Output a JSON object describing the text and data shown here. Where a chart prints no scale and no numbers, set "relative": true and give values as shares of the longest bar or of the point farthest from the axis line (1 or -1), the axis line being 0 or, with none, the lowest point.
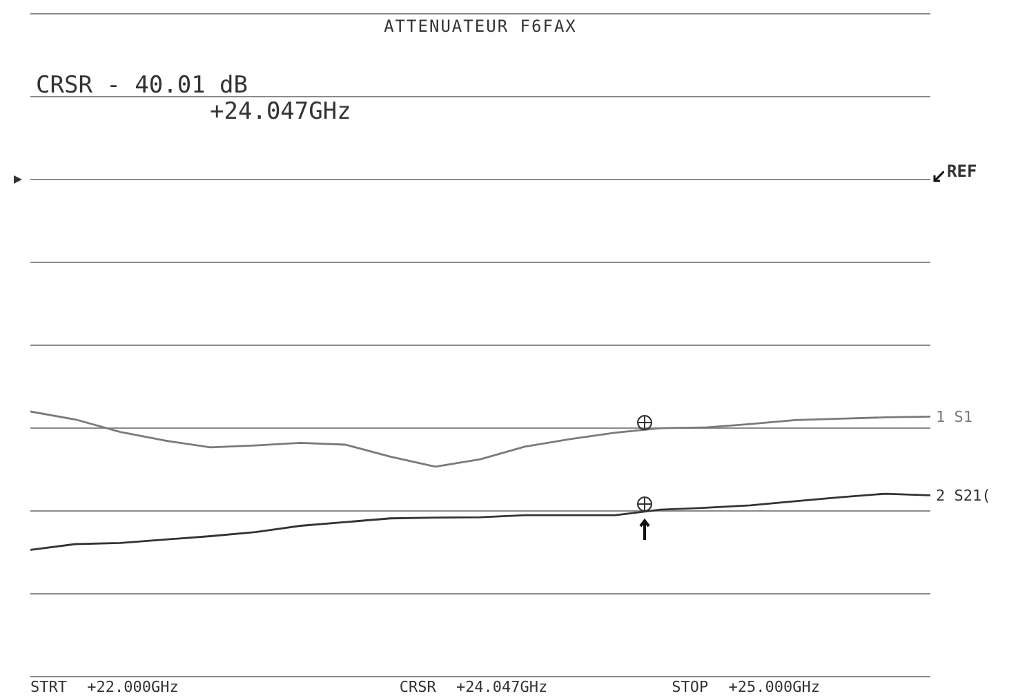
{
  "chart_data": {
    "type": "line",
    "title": "ATTENUATEUR F6FAX",
    "relative": true,
    "categories": [
      null,
      null,
      null,
      null,
      null,
      null,
      null,
      null,
      null,
      null,
      null,
      null,
      null,
      null,
      null,
      null,
      null,
      null,
      null,
      null,
      null
    ],
    "tick_labels": false,
    "grid": true,
    "legend": false,
    "marker": "none",
    "line_style": "solid",
    "series": [
      {
        "name": "1 S1",
        "color": "#7a7a7a",
        "values": [
          1.0,
          0.97,
          0.923,
          0.89,
          0.865,
          0.872,
          0.882,
          0.875,
          0.83,
          0.792,
          0.82,
          0.868,
          0.896,
          0.92,
          0.937,
          0.94,
          0.953,
          0.968,
          0.973,
          0.978,
          0.981
        ]
      },
      {
        "name": "2 S21(",
        "color": "#333333",
        "values": [
          0.478,
          0.5,
          0.504,
          0.517,
          0.53,
          0.545,
          0.569,
          0.583,
          0.597,
          0.6,
          0.601,
          0.609,
          0.609,
          0.609,
          0.63,
          0.637,
          0.646,
          0.662,
          0.677,
          0.69,
          0.684
        ]
      }
    ],
    "annotations": [
      "CRSR - 40.01 dB",
      "+24.047GHz",
      "REF",
      "STRT +22.000GHz",
      "CRSR +24.047GHz",
      "STOP +25.000GHz"
    ]
  }
}
